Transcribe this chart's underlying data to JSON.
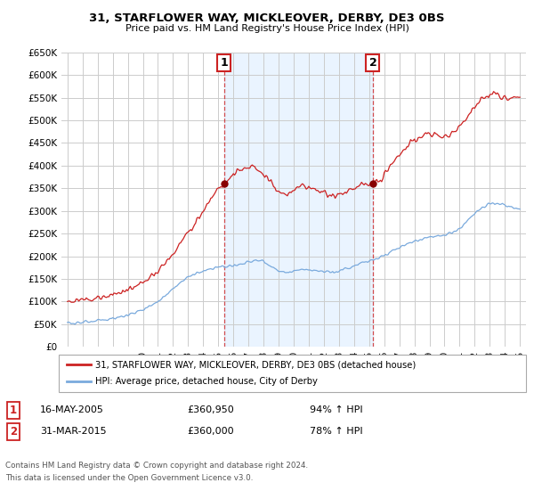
{
  "title": "31, STARFLOWER WAY, MICKLEOVER, DERBY, DE3 0BS",
  "subtitle": "Price paid vs. HM Land Registry's House Price Index (HPI)",
  "legend_line1": "31, STARFLOWER WAY, MICKLEOVER, DERBY, DE3 0BS (detached house)",
  "legend_line2": "HPI: Average price, detached house, City of Derby",
  "annotation1_label": "1",
  "annotation1_date": "16-MAY-2005",
  "annotation1_price": "£360,950",
  "annotation1_hpi": "94% ↑ HPI",
  "annotation2_label": "2",
  "annotation2_date": "31-MAR-2015",
  "annotation2_price": "£360,000",
  "annotation2_hpi": "78% ↑ HPI",
  "footer1": "Contains HM Land Registry data © Crown copyright and database right 2024.",
  "footer2": "This data is licensed under the Open Government Licence v3.0.",
  "red_color": "#cc2222",
  "blue_color": "#7aaadd",
  "shade_color": "#ddeeff",
  "background_color": "#ffffff",
  "grid_color": "#cccccc",
  "ylim": [
    0,
    650000
  ],
  "yticks": [
    0,
    50000,
    100000,
    150000,
    200000,
    250000,
    300000,
    350000,
    400000,
    450000,
    500000,
    550000,
    600000,
    650000
  ],
  "x_start_year": 1995,
  "x_end_year": 2025,
  "sale1_year": 2005.37,
  "sale1_price": 360950,
  "sale2_year": 2015.25,
  "sale2_price": 360000,
  "vline1_year": 2005.37,
  "vline2_year": 2015.25,
  "red_waypoints": [
    [
      1995.0,
      100000
    ],
    [
      1995.5,
      102000
    ],
    [
      1996.0,
      105000
    ],
    [
      1996.5,
      108000
    ],
    [
      1997.0,
      111000
    ],
    [
      1997.5,
      113000
    ],
    [
      1998.0,
      116000
    ],
    [
      1998.5,
      120000
    ],
    [
      1999.0,
      125000
    ],
    [
      1999.5,
      132000
    ],
    [
      2000.0,
      142000
    ],
    [
      2000.5,
      155000
    ],
    [
      2001.0,
      168000
    ],
    [
      2001.5,
      185000
    ],
    [
      2002.0,
      205000
    ],
    [
      2002.5,
      228000
    ],
    [
      2003.0,
      255000
    ],
    [
      2003.5,
      275000
    ],
    [
      2004.0,
      298000
    ],
    [
      2004.5,
      328000
    ],
    [
      2005.0,
      350000
    ],
    [
      2005.37,
      360950
    ],
    [
      2005.8,
      375000
    ],
    [
      2006.3,
      388000
    ],
    [
      2006.8,
      395000
    ],
    [
      2007.2,
      400000
    ],
    [
      2007.6,
      392000
    ],
    [
      2008.0,
      382000
    ],
    [
      2008.5,
      365000
    ],
    [
      2009.0,
      342000
    ],
    [
      2009.5,
      338000
    ],
    [
      2009.8,
      340000
    ],
    [
      2010.2,
      352000
    ],
    [
      2010.6,
      356000
    ],
    [
      2011.0,
      350000
    ],
    [
      2011.5,
      344000
    ],
    [
      2012.0,
      338000
    ],
    [
      2012.5,
      335000
    ],
    [
      2013.0,
      338000
    ],
    [
      2013.5,
      345000
    ],
    [
      2014.0,
      352000
    ],
    [
      2014.5,
      358000
    ],
    [
      2015.0,
      360000
    ],
    [
      2015.25,
      360000
    ],
    [
      2015.8,
      375000
    ],
    [
      2016.3,
      395000
    ],
    [
      2016.8,
      415000
    ],
    [
      2017.3,
      435000
    ],
    [
      2017.8,
      452000
    ],
    [
      2018.3,
      462000
    ],
    [
      2018.8,
      470000
    ],
    [
      2019.3,
      468000
    ],
    [
      2019.8,
      462000
    ],
    [
      2020.3,
      465000
    ],
    [
      2020.8,
      480000
    ],
    [
      2021.3,
      500000
    ],
    [
      2021.8,
      520000
    ],
    [
      2022.3,
      542000
    ],
    [
      2022.8,
      555000
    ],
    [
      2023.3,
      558000
    ],
    [
      2023.8,
      550000
    ],
    [
      2024.3,
      548000
    ],
    [
      2024.7,
      552000
    ],
    [
      2025.0,
      550000
    ]
  ],
  "blue_waypoints": [
    [
      1995.0,
      52000
    ],
    [
      1995.5,
      53000
    ],
    [
      1996.0,
      54500
    ],
    [
      1996.5,
      56000
    ],
    [
      1997.0,
      58000
    ],
    [
      1997.5,
      60000
    ],
    [
      1998.0,
      63000
    ],
    [
      1998.5,
      66000
    ],
    [
      1999.0,
      70000
    ],
    [
      1999.5,
      75000
    ],
    [
      2000.0,
      82000
    ],
    [
      2000.5,
      91000
    ],
    [
      2001.0,
      101000
    ],
    [
      2001.5,
      114000
    ],
    [
      2002.0,
      128000
    ],
    [
      2002.5,
      142000
    ],
    [
      2003.0,
      155000
    ],
    [
      2003.5,
      163000
    ],
    [
      2004.0,
      168000
    ],
    [
      2004.5,
      173000
    ],
    [
      2005.0,
      176000
    ],
    [
      2005.5,
      178000
    ],
    [
      2006.0,
      180000
    ],
    [
      2006.5,
      183000
    ],
    [
      2007.0,
      188000
    ],
    [
      2007.5,
      192000
    ],
    [
      2008.0,
      188000
    ],
    [
      2008.5,
      178000
    ],
    [
      2009.0,
      168000
    ],
    [
      2009.5,
      165000
    ],
    [
      2010.0,
      168000
    ],
    [
      2010.5,
      172000
    ],
    [
      2011.0,
      170000
    ],
    [
      2011.5,
      168000
    ],
    [
      2012.0,
      166000
    ],
    [
      2012.5,
      165000
    ],
    [
      2013.0,
      168000
    ],
    [
      2013.5,
      172000
    ],
    [
      2014.0,
      178000
    ],
    [
      2014.5,
      185000
    ],
    [
      2015.0,
      190000
    ],
    [
      2015.5,
      196000
    ],
    [
      2016.0,
      202000
    ],
    [
      2016.5,
      210000
    ],
    [
      2017.0,
      218000
    ],
    [
      2017.5,
      226000
    ],
    [
      2018.0,
      233000
    ],
    [
      2018.5,
      238000
    ],
    [
      2019.0,
      242000
    ],
    [
      2019.5,
      245000
    ],
    [
      2020.0,
      246000
    ],
    [
      2020.5,
      250000
    ],
    [
      2021.0,
      262000
    ],
    [
      2021.5,
      278000
    ],
    [
      2022.0,
      295000
    ],
    [
      2022.5,
      308000
    ],
    [
      2023.0,
      315000
    ],
    [
      2023.5,
      315000
    ],
    [
      2024.0,
      312000
    ],
    [
      2024.5,
      308000
    ],
    [
      2025.0,
      305000
    ]
  ]
}
